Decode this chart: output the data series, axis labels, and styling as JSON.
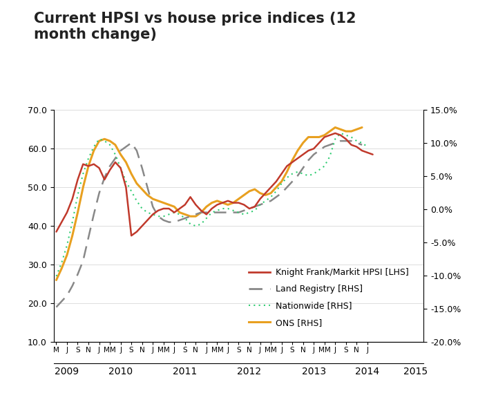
{
  "title": "Current HPSI vs house price indices (12\nmonth change)",
  "title_fontsize": 15,
  "background_color": "#ffffff",
  "lhs_ylim": [
    10.0,
    70.0
  ],
  "lhs_yticks": [
    10.0,
    20.0,
    30.0,
    40.0,
    50.0,
    60.0,
    70.0
  ],
  "rhs_yticks": [
    -0.2,
    -0.15,
    -0.1,
    -0.05,
    0.0,
    0.05,
    0.1,
    0.15
  ],
  "hpsi_color": "#c0392b",
  "land_registry_color": "#888888",
  "nationwide_color": "#2ecc71",
  "ons_color": "#e8a020",
  "hpsi": [
    38.5,
    41.0,
    43.5,
    47.0,
    52.0,
    56.0,
    55.5,
    56.0,
    55.0,
    52.0,
    54.5,
    56.5,
    55.0,
    50.0,
    37.5,
    38.5,
    40.0,
    41.5,
    43.0,
    44.0,
    44.5,
    44.5,
    43.5,
    44.5,
    45.5,
    47.5,
    45.5,
    44.0,
    43.0,
    44.5,
    45.5,
    46.0,
    46.5,
    46.0,
    46.0,
    45.5,
    44.5,
    45.0,
    47.0,
    48.5,
    50.0,
    51.5,
    53.5,
    55.5,
    56.5,
    57.5,
    58.5,
    59.5,
    60.0,
    61.5,
    63.0,
    63.5,
    64.0,
    63.5,
    62.5,
    61.0,
    60.5,
    59.5,
    59.0,
    58.5
  ],
  "land_registry": [
    19.0,
    20.5,
    22.0,
    24.5,
    27.5,
    31.0,
    37.0,
    43.0,
    48.5,
    52.5,
    55.5,
    57.5,
    59.5,
    60.5,
    61.5,
    59.5,
    55.0,
    50.0,
    45.0,
    42.5,
    41.5,
    41.0,
    41.0,
    41.5,
    42.0,
    42.5,
    43.0,
    43.5,
    43.5,
    43.5,
    43.5,
    43.5,
    43.5,
    43.5,
    43.5,
    44.0,
    44.5,
    45.0,
    45.5,
    46.0,
    46.5,
    47.5,
    48.5,
    50.0,
    51.5,
    53.0,
    55.0,
    57.0,
    58.5,
    59.5,
    60.5,
    61.0,
    61.5,
    62.0,
    62.0,
    62.0,
    61.5,
    61.0
  ],
  "nationwide": [
    27.0,
    30.5,
    35.0,
    41.0,
    48.0,
    53.5,
    57.5,
    60.5,
    62.5,
    62.0,
    61.0,
    58.5,
    55.0,
    51.5,
    49.0,
    46.5,
    44.5,
    43.5,
    43.0,
    42.5,
    42.5,
    43.0,
    43.5,
    43.0,
    42.0,
    40.5,
    40.0,
    40.5,
    42.0,
    43.5,
    44.0,
    44.5,
    44.5,
    44.0,
    43.5,
    43.0,
    43.5,
    44.0,
    45.5,
    46.5,
    47.5,
    49.0,
    51.0,
    52.5,
    53.5,
    54.0,
    53.5,
    53.0,
    53.5,
    54.5,
    55.5,
    58.0,
    62.5,
    64.0,
    63.5,
    63.0,
    62.0,
    61.5,
    60.5
  ],
  "ons": [
    26.0,
    29.0,
    32.5,
    37.5,
    43.5,
    50.0,
    55.5,
    59.5,
    62.0,
    62.5,
    62.0,
    61.0,
    58.5,
    56.5,
    53.5,
    51.0,
    49.5,
    48.0,
    47.0,
    46.5,
    46.0,
    45.5,
    45.0,
    43.5,
    43.0,
    42.5,
    42.5,
    43.5,
    45.0,
    46.0,
    46.5,
    46.0,
    45.5,
    46.0,
    47.0,
    48.0,
    49.0,
    49.5,
    48.5,
    48.0,
    48.5,
    50.0,
    51.5,
    54.0,
    57.0,
    59.5,
    61.5,
    63.0,
    63.0,
    63.0,
    63.5,
    64.5,
    65.5,
    65.0,
    64.5,
    64.5,
    65.0,
    65.5
  ],
  "month_tick_labels": [
    "M",
    "J",
    "S",
    "N",
    "J",
    "MM",
    "J",
    "S",
    "N",
    "J",
    "MM",
    "J",
    "S",
    "N",
    "J",
    "MM",
    "J",
    "S",
    "N",
    "J",
    "MM",
    "J",
    "S",
    "N",
    "J",
    "MM",
    "J",
    "S",
    "N",
    "J"
  ],
  "month_tick_offsets": [
    0,
    2,
    4,
    6,
    8,
    10,
    12,
    14,
    16,
    18,
    20,
    22,
    24,
    26,
    28,
    30,
    32,
    34,
    36,
    38,
    40,
    42,
    44,
    46,
    48,
    50,
    52,
    54,
    56,
    58
  ],
  "year_labels": [
    "2009",
    "2010",
    "2011",
    "2012",
    "2013",
    "2014",
    "2015"
  ],
  "year_tick_offsets": [
    2,
    12,
    24,
    36,
    48,
    58,
    67
  ]
}
